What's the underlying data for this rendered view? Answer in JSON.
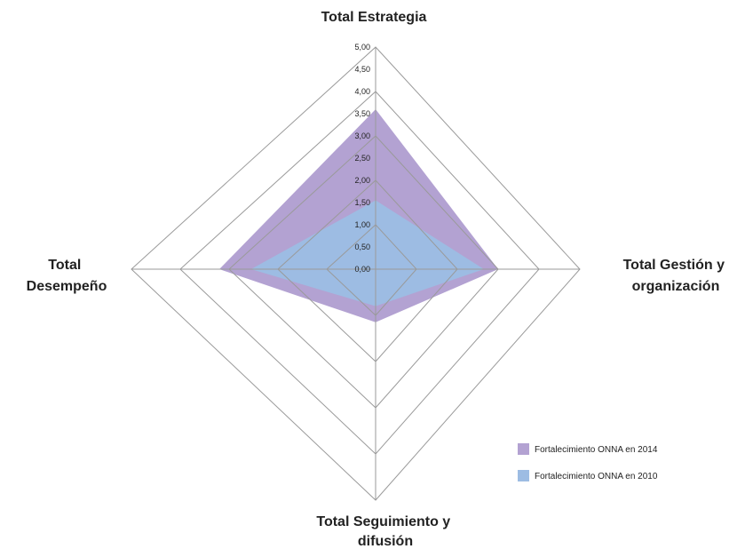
{
  "chart_data": {
    "type": "radar",
    "title": "",
    "axes": [
      {
        "name": "Total Estrategia",
        "lines": [
          "Total Estrategia"
        ]
      },
      {
        "name": "Total Gestión y organización",
        "lines": [
          "Total Gestión y",
          "organización"
        ]
      },
      {
        "name": "Total Seguimiento y difusión",
        "lines": [
          "Total Seguimiento y",
          "difusión"
        ]
      },
      {
        "name": "Total Desempeño",
        "lines": [
          "Total",
          "Desempeño"
        ]
      }
    ],
    "range": [
      0,
      5
    ],
    "ticks": [
      "0,00",
      "0,50",
      "1,00",
      "1,50",
      "2,00",
      "2,50",
      "3,00",
      "3,50",
      "4,00",
      "4,50",
      "5,00"
    ],
    "grid": true,
    "legend_position": "bottom-right",
    "series": [
      {
        "name": "Fortalecimiento ONNA en 2014",
        "color": "#b3a2d2",
        "values": [
          3.6,
          3.0,
          1.15,
          3.2
        ]
      },
      {
        "name": "Fortalecimiento ONNA en 2010",
        "color": "#9dbce3",
        "values": [
          1.55,
          2.65,
          0.8,
          2.55
        ]
      }
    ]
  }
}
